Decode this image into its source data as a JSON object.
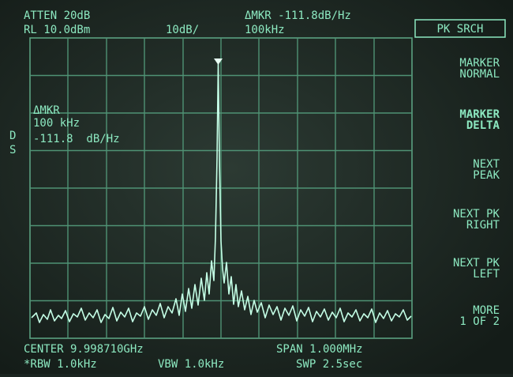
{
  "header": {
    "atten": "ATTEN 20dB",
    "delta_marker": "ΔMKR -111.8dB/Hz",
    "ref_level": "RL 10.0dBm",
    "scale": "10dB/",
    "marker_freq": "100kHz"
  },
  "marker_readout": {
    "label": "ΔMKR",
    "freq": "100 kHz",
    "level": "-111.8  dB/Hz"
  },
  "indicators": [
    "D",
    "S"
  ],
  "softkeys": {
    "title": "PK SRCH",
    "keys": [
      {
        "lines": [
          "MARKER",
          "NORMAL"
        ]
      },
      {
        "lines": [
          "MARKER",
          "DELTA"
        ]
      },
      {
        "lines": [
          "NEXT",
          "PEAK"
        ]
      },
      {
        "lines": [
          "NEXT PK",
          "RIGHT"
        ]
      },
      {
        "lines": [
          "NEXT PK",
          "LEFT"
        ]
      },
      {
        "lines": [
          "MORE",
          "1 OF 2"
        ]
      }
    ]
  },
  "footer": {
    "center": "CENTER 9.998710GHz",
    "span": "SPAN 1.000MHz",
    "rbw": "*RBW 1.0kHz",
    "vbw": "VBW 1.0kHz",
    "sweep": "SWP 2.5sec"
  }
}
